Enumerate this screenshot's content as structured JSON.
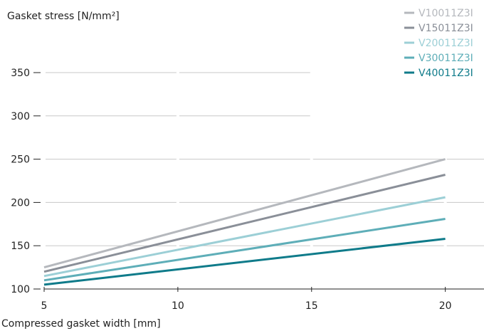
{
  "chart_data": {
    "type": "line",
    "title": "",
    "ylabel": "Gasket stress [N/mm²]",
    "xlabel": "Compressed gasket width [mm]",
    "xlim": [
      5,
      21.5
    ],
    "ylim": [
      100,
      350
    ],
    "x_ticks": [
      5,
      10,
      15,
      20
    ],
    "y_ticks": [
      100,
      150,
      200,
      250,
      300,
      350
    ],
    "grid": "horizontal",
    "legend_position": "top-right",
    "series": [
      {
        "name": "V10011Z3I",
        "color": "#b5b8bd",
        "x": [
          5,
          20
        ],
        "y": [
          125,
          250
        ]
      },
      {
        "name": "V15011Z3I",
        "color": "#8a8f98",
        "x": [
          5,
          20
        ],
        "y": [
          120,
          232
        ]
      },
      {
        "name": "V20011Z3I",
        "color": "#9ccfd6",
        "x": [
          5,
          20
        ],
        "y": [
          115,
          206
        ]
      },
      {
        "name": "V30011Z3I",
        "color": "#5eaeb8",
        "x": [
          5,
          20
        ],
        "y": [
          110,
          181
        ]
      },
      {
        "name": "V40011Z3I",
        "color": "#0f7b8a",
        "x": [
          5,
          20
        ],
        "y": [
          105,
          158
        ]
      }
    ]
  }
}
